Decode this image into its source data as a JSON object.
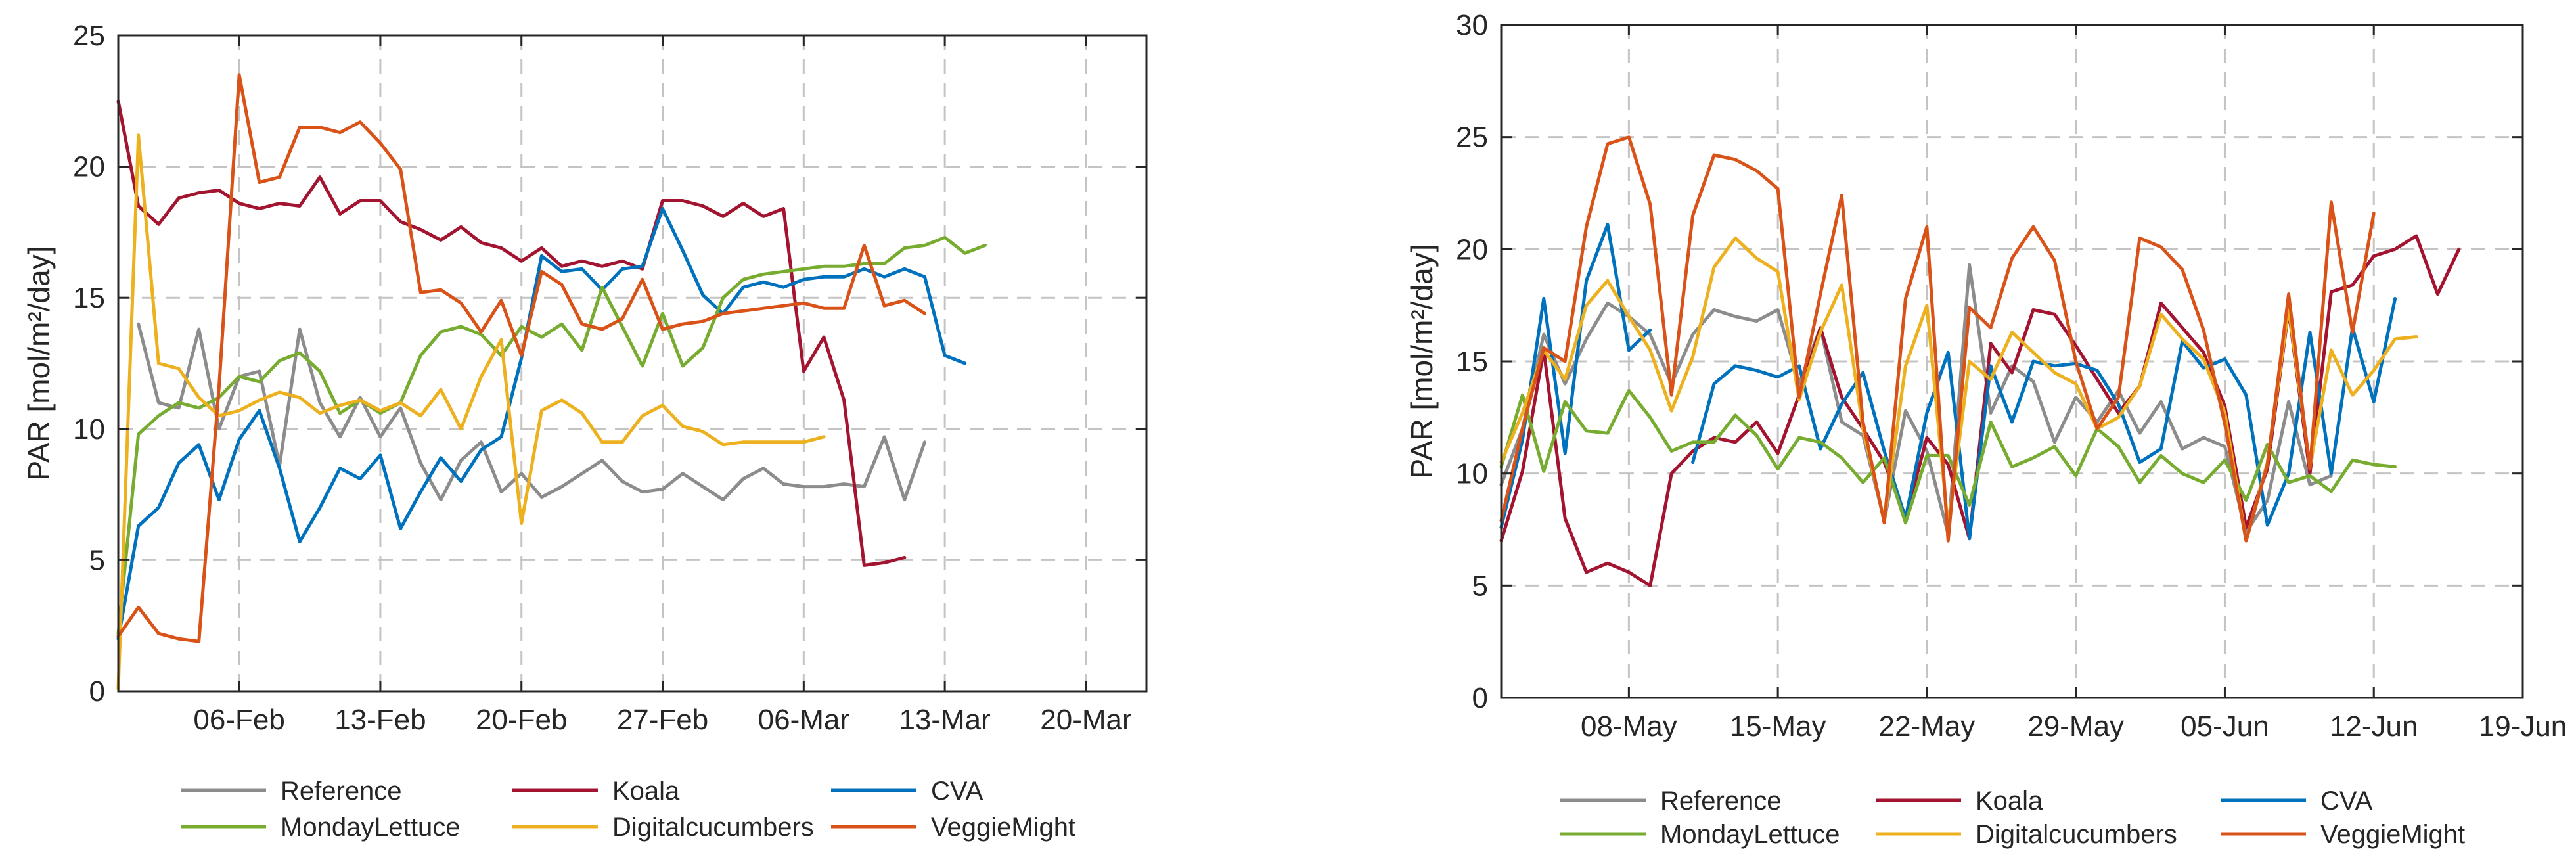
{
  "chart_data": [
    {
      "type": "line",
      "ylabel": "PAR [mol/m²/day]",
      "ylim": [
        0,
        25
      ],
      "yticks": [
        0,
        5,
        10,
        15,
        20,
        25
      ],
      "xlim": [
        "2023-01-31",
        "2023-03-23"
      ],
      "xticks": [
        {
          "date": "2023-02-06",
          "label": "06-Feb"
        },
        {
          "date": "2023-02-13",
          "label": "13-Feb"
        },
        {
          "date": "2023-02-20",
          "label": "20-Feb"
        },
        {
          "date": "2023-02-27",
          "label": "27-Feb"
        },
        {
          "date": "2023-03-06",
          "label": "06-Mar"
        },
        {
          "date": "2023-03-13",
          "label": "13-Mar"
        },
        {
          "date": "2023-03-20",
          "label": "20-Mar"
        }
      ],
      "grid": true,
      "legend": "below",
      "series": [
        {
          "name": "Reference",
          "color": "#8c8c8c",
          "start": "2023-02-01",
          "values": [
            14.0,
            11.0,
            10.8,
            13.8,
            10.0,
            12.0,
            12.2,
            8.6,
            13.8,
            11.0,
            9.7,
            11.2,
            9.7,
            10.8,
            8.7,
            7.3,
            8.8,
            9.5,
            7.6,
            8.3,
            7.4,
            7.8,
            8.3,
            8.8,
            8.0,
            7.6,
            7.7,
            8.3,
            7.8,
            7.3,
            8.1,
            8.5,
            7.9,
            7.8,
            7.8,
            7.9,
            7.8,
            9.7,
            7.3,
            9.5
          ]
        },
        {
          "name": "Koala",
          "color": "#a2142f",
          "start": "2023-01-31",
          "values": [
            22.5,
            18.5,
            17.8,
            18.8,
            19.0,
            19.1,
            18.6,
            18.4,
            18.6,
            18.5,
            19.6,
            18.2,
            18.7,
            18.7,
            17.9,
            17.6,
            17.2,
            17.7,
            17.1,
            16.9,
            16.4,
            16.9,
            16.2,
            16.4,
            16.2,
            16.4,
            16.1,
            18.7,
            18.7,
            18.5,
            18.1,
            18.6,
            18.1,
            18.4,
            12.2,
            13.5,
            11.1,
            4.8,
            4.9,
            5.1
          ]
        },
        {
          "name": "CVA",
          "color": "#0072bd",
          "start": "2023-01-31",
          "values": [
            2.0,
            6.3,
            7.0,
            8.7,
            9.4,
            7.3,
            9.6,
            10.7,
            8.5,
            5.7,
            7.0,
            8.5,
            8.1,
            9.0,
            6.2,
            7.6,
            8.9,
            8.0,
            9.2,
            9.7,
            12.7,
            16.6,
            16.0,
            16.1,
            15.3,
            16.1,
            16.2,
            18.4,
            16.8,
            15.1,
            14.4,
            15.4,
            15.6,
            15.4,
            15.7,
            15.8,
            15.8,
            16.1,
            15.8,
            16.1,
            15.8,
            12.8,
            12.5
          ]
        },
        {
          "name": "MondayLettuce",
          "color": "#77ac30",
          "start": "2023-01-31",
          "values": [
            2.2,
            9.8,
            10.5,
            11.0,
            10.8,
            11.2,
            12.0,
            11.8,
            12.6,
            12.9,
            12.2,
            10.6,
            11.1,
            10.6,
            11.0,
            12.8,
            13.7,
            13.9,
            13.6,
            12.8,
            13.9,
            13.5,
            14.0,
            13.0,
            15.4,
            13.9,
            12.4,
            14.4,
            12.4,
            13.1,
            15.0,
            15.7,
            15.9,
            16.0,
            16.1,
            16.2,
            16.2,
            16.3,
            16.3,
            16.9,
            17.0,
            17.3,
            16.7,
            17.0
          ]
        },
        {
          "name": "Digitalcucumbers",
          "color": "#edb120",
          "start": "2023-01-31",
          "values": [
            0.1,
            21.2,
            12.5,
            12.3,
            11.2,
            10.5,
            10.7,
            11.1,
            11.4,
            11.2,
            10.6,
            10.9,
            11.1,
            10.7,
            11.0,
            10.5,
            11.5,
            10.0,
            12.0,
            13.4,
            6.4,
            10.7,
            11.1,
            10.6,
            9.5,
            9.5,
            10.5,
            10.9,
            10.1,
            9.9,
            9.4,
            9.5,
            9.5,
            9.5,
            9.5,
            9.7
          ]
        },
        {
          "name": "VeggieMight",
          "color": "#d95319",
          "start": "2023-01-31",
          "values": [
            2.1,
            3.2,
            2.2,
            2.0,
            1.9,
            11.6,
            23.5,
            19.4,
            19.6,
            21.5,
            21.5,
            21.3,
            21.7,
            20.9,
            19.9,
            15.2,
            15.3,
            14.8,
            13.7,
            14.9,
            12.8,
            16.0,
            15.5,
            14.0,
            13.8,
            14.2,
            15.7,
            13.8,
            14.0,
            14.1,
            14.4,
            14.5,
            14.6,
            14.7,
            14.8,
            14.6,
            14.6,
            17.0,
            14.7,
            14.9,
            14.4
          ]
        }
      ]
    },
    {
      "type": "line",
      "ylabel": "PAR [mol/m²/day]",
      "ylim": [
        0,
        30
      ],
      "yticks": [
        0,
        5,
        10,
        15,
        20,
        25,
        30
      ],
      "xlim": [
        "2023-05-02",
        "2023-06-19"
      ],
      "xticks": [
        {
          "date": "2023-05-08",
          "label": "08-May"
        },
        {
          "date": "2023-05-15",
          "label": "15-May"
        },
        {
          "date": "2023-05-22",
          "label": "22-May"
        },
        {
          "date": "2023-05-29",
          "label": "29-May"
        },
        {
          "date": "2023-06-05",
          "label": "05-Jun"
        },
        {
          "date": "2023-06-12",
          "label": "12-Jun"
        },
        {
          "date": "2023-06-19",
          "label": "19-Jun"
        }
      ],
      "grid": true,
      "legend": "below",
      "series": [
        {
          "name": "Reference",
          "color": "#8c8c8c",
          "start": "2023-05-02",
          "values": [
            9.5,
            12.0,
            16.2,
            14.0,
            16.0,
            17.6,
            17.0,
            16.2,
            14.0,
            16.2,
            17.3,
            17.0,
            16.8,
            17.3,
            14.0,
            16.5,
            12.3,
            11.7,
            7.9,
            12.8,
            11.0,
            7.3,
            19.3,
            12.7,
            14.8,
            14.1,
            11.4,
            13.4,
            12.3,
            13.7,
            11.8,
            13.2,
            11.1,
            11.6,
            11.2,
            7.4,
            8.8,
            13.2,
            9.5,
            9.9
          ]
        },
        {
          "name": "Koala",
          "color": "#a2142f",
          "start": "2023-05-02",
          "values": [
            7.0,
            10.1,
            15.5,
            8.0,
            5.6,
            6.0,
            5.6,
            5.0,
            10.0,
            11.0,
            11.6,
            11.4,
            12.3,
            10.9,
            13.5,
            16.5,
            13.4,
            12.0,
            10.5,
            8.0,
            11.6,
            10.4,
            7.1,
            15.8,
            14.5,
            17.3,
            17.1,
            15.7,
            14.2,
            12.7,
            13.9,
            17.6,
            16.5,
            15.4,
            13.0,
            7.6,
            10.2,
            17.3,
            10.0,
            18.1,
            18.4,
            19.7,
            20.0,
            20.6,
            18.0,
            20.0
          ]
        },
        {
          "name": "CVA",
          "color": "#0072bd",
          "start": "2023-05-02",
          "values": [
            7.6,
            11.5,
            17.8,
            10.9,
            18.6,
            21.1,
            15.5,
            16.4,
            null,
            10.5,
            14.0,
            14.8,
            14.6,
            14.3,
            14.8,
            11.1,
            13.1,
            14.5,
            11.0,
            8.0,
            12.7,
            15.4,
            7.1,
            14.8,
            12.3,
            15.0,
            14.8,
            14.9,
            14.6,
            13.1,
            10.5,
            11.1,
            15.9,
            14.7,
            15.1,
            13.5,
            7.7,
            10.0,
            16.3,
            10.0,
            16.5,
            13.2,
            17.8
          ]
        },
        {
          "name": "MondayLettuce",
          "color": "#77ac30",
          "start": "2023-05-02",
          "values": [
            10.3,
            13.5,
            10.1,
            13.2,
            11.9,
            11.8,
            13.7,
            12.5,
            11.0,
            11.4,
            11.4,
            12.6,
            11.7,
            10.2,
            11.6,
            11.4,
            10.7,
            9.6,
            10.7,
            7.8,
            10.8,
            10.8,
            8.6,
            12.3,
            10.3,
            10.7,
            11.2,
            9.9,
            12.0,
            11.2,
            9.6,
            10.8,
            10.0,
            9.6,
            10.6,
            8.8,
            11.3,
            9.6,
            9.9,
            9.2,
            10.6,
            10.4,
            10.3
          ]
        },
        {
          "name": "Digitalcucumbers",
          "color": "#edb120",
          "start": "2023-05-02",
          "values": [
            10.5,
            12.7,
            15.5,
            14.2,
            17.5,
            18.6,
            17.0,
            15.5,
            12.8,
            15.2,
            19.2,
            20.5,
            19.6,
            19.0,
            13.3,
            16.3,
            18.4,
            12.0,
            7.9,
            14.8,
            17.5,
            7.6,
            15.0,
            14.2,
            16.3,
            15.4,
            14.5,
            14.0,
            12.0,
            12.5,
            13.9,
            17.1,
            16.0,
            15.1,
            12.7,
            7.0,
            10.5,
            17.4,
            10.3,
            15.5,
            13.5,
            14.6,
            16.0,
            16.1
          ]
        },
        {
          "name": "VeggieMight",
          "color": "#d95319",
          "start": "2023-05-02",
          "values": [
            7.9,
            12.0,
            15.6,
            15.0,
            21.0,
            24.7,
            25.0,
            22.0,
            13.5,
            21.5,
            24.2,
            24.0,
            23.5,
            22.7,
            13.4,
            18.0,
            22.4,
            12.3,
            7.8,
            17.8,
            21.0,
            7.0,
            17.4,
            16.5,
            19.6,
            21.0,
            19.5,
            15.0,
            12.0,
            13.4,
            20.5,
            20.1,
            19.1,
            16.4,
            12.2,
            7.0,
            10.4,
            18.0,
            10.2,
            22.1,
            16.3,
            21.6
          ]
        }
      ]
    }
  ]
}
